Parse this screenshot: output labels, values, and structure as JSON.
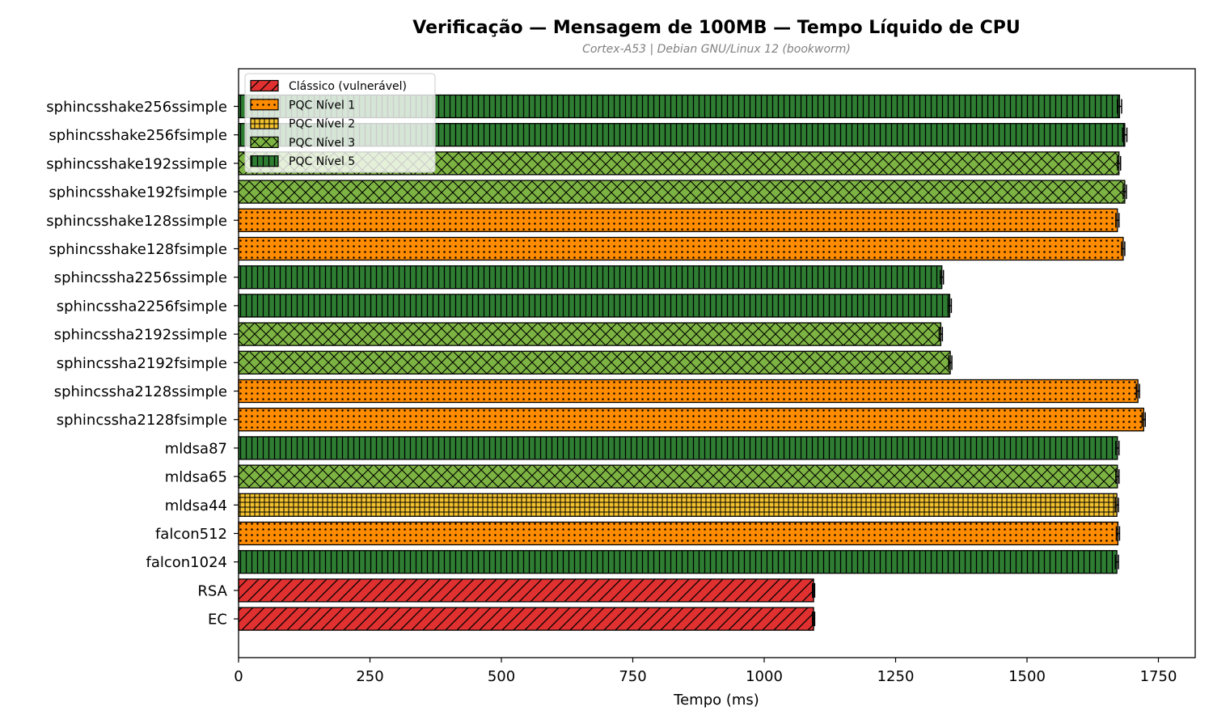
{
  "chart_data": {
    "type": "bar",
    "orientation": "horizontal",
    "title": "Verificação — Mensagem de 100MB — Tempo Líquido de CPU",
    "subtitle": "Cortex-A53 | Debian GNU/Linux 12 (bookworm)",
    "xlabel": "Tempo (ms)",
    "ylabel": "",
    "xlim": [
      0,
      1820
    ],
    "xticks": [
      0,
      250,
      500,
      750,
      1000,
      1250,
      1500,
      1750
    ],
    "grid": false,
    "legend_position": "top-left",
    "levels": {
      "classic": {
        "label": "Clássico (vulnerável)",
        "color": "#e03030",
        "hatch": "diagonal"
      },
      "l1": {
        "label": "PQC Nível 1",
        "color": "#ff8c00",
        "hatch": "dots"
      },
      "l2": {
        "label": "PQC Nível 2",
        "color": "#f2c12e",
        "hatch": "grid"
      },
      "l3": {
        "label": "PQC Nível 3",
        "color": "#7cb342",
        "hatch": "cross"
      },
      "l5": {
        "label": "PQC Nível 5",
        "color": "#2e7d32",
        "hatch": "vertical"
      }
    },
    "legend_order": [
      "classic",
      "l1",
      "l2",
      "l3",
      "l5"
    ],
    "bars": [
      {
        "label": "sphincsshake256ssimple",
        "value": 1676,
        "error": 4,
        "level": "l5"
      },
      {
        "label": "sphincsshake256fsimple",
        "value": 1686,
        "error": 4,
        "level": "l5"
      },
      {
        "label": "sphincsshake192ssimple",
        "value": 1675,
        "error": 3,
        "level": "l3"
      },
      {
        "label": "sphincsshake192fsimple",
        "value": 1686,
        "error": 3,
        "level": "l3"
      },
      {
        "label": "sphincsshake128ssimple",
        "value": 1672,
        "error": 3,
        "level": "l1"
      },
      {
        "label": "sphincsshake128fsimple",
        "value": 1683,
        "error": 3,
        "level": "l1"
      },
      {
        "label": "sphincssha2256ssimple",
        "value": 1338,
        "error": 3,
        "level": "l5"
      },
      {
        "label": "sphincssha2256fsimple",
        "value": 1353,
        "error": 3,
        "level": "l5"
      },
      {
        "label": "sphincssha2192ssimple",
        "value": 1336,
        "error": 3,
        "level": "l3"
      },
      {
        "label": "sphincssha2192fsimple",
        "value": 1354,
        "error": 3,
        "level": "l3"
      },
      {
        "label": "sphincssha2128ssimple",
        "value": 1711,
        "error": 3,
        "level": "l1"
      },
      {
        "label": "sphincssha2128fsimple",
        "value": 1722,
        "error": 3,
        "level": "l1"
      },
      {
        "label": "mldsa87",
        "value": 1672,
        "error": 3,
        "level": "l5"
      },
      {
        "label": "mldsa65",
        "value": 1672,
        "error": 3,
        "level": "l3"
      },
      {
        "label": "mldsa44",
        "value": 1671,
        "error": 3,
        "level": "l2"
      },
      {
        "label": "falcon512",
        "value": 1673,
        "error": 3,
        "level": "l1"
      },
      {
        "label": "falcon1024",
        "value": 1671,
        "error": 3,
        "level": "l5"
      },
      {
        "label": "RSA",
        "value": 1094,
        "error": 2,
        "level": "classic"
      },
      {
        "label": "EC",
        "value": 1094,
        "error": 2,
        "level": "classic"
      }
    ]
  }
}
